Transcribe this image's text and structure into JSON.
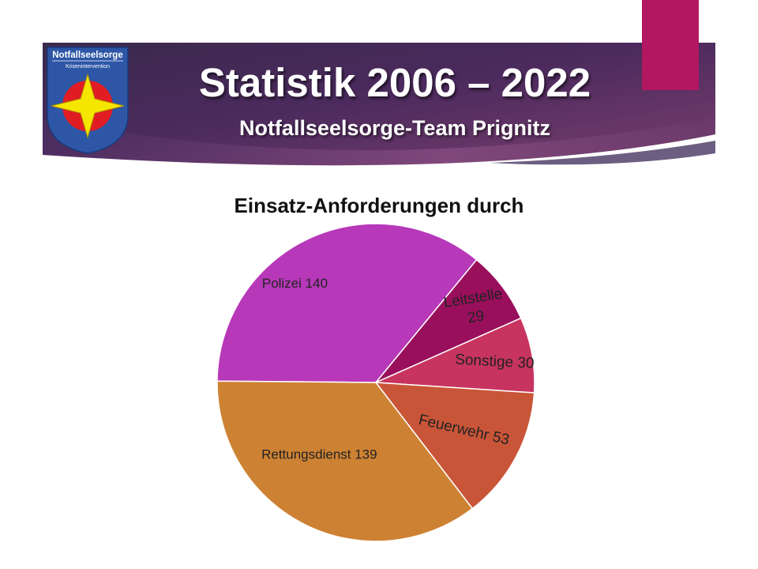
{
  "header": {
    "title": "Statistik 2006 – 2022",
    "subtitle": "Notfallseelsorge-Team Prignitz"
  },
  "logo": {
    "text_top": "Notfallseelsorge",
    "text_bottom": "Krisenintervention",
    "icon": "star-emblem-icon"
  },
  "colors": {
    "banner_dark": "#2a1f3f",
    "banner_mid": "#4b2a5d",
    "banner_light": "#8a4f88",
    "accent": "#b31762"
  },
  "chart_data": {
    "type": "pie",
    "title": "Einsatz-Anforderungen durch",
    "slices": [
      {
        "label": "Polizei",
        "value": 140,
        "color": "#b738b8"
      },
      {
        "label": "Leitstelle",
        "value": 29,
        "color": "#990f5c"
      },
      {
        "label": "Sonstige",
        "value": 30,
        "color": "#c7345f"
      },
      {
        "label": "Feuerwehr",
        "value": 53,
        "color": "#c95538"
      },
      {
        "label": "Rettungsdienst",
        "value": 139,
        "color": "#cd8233"
      }
    ]
  }
}
